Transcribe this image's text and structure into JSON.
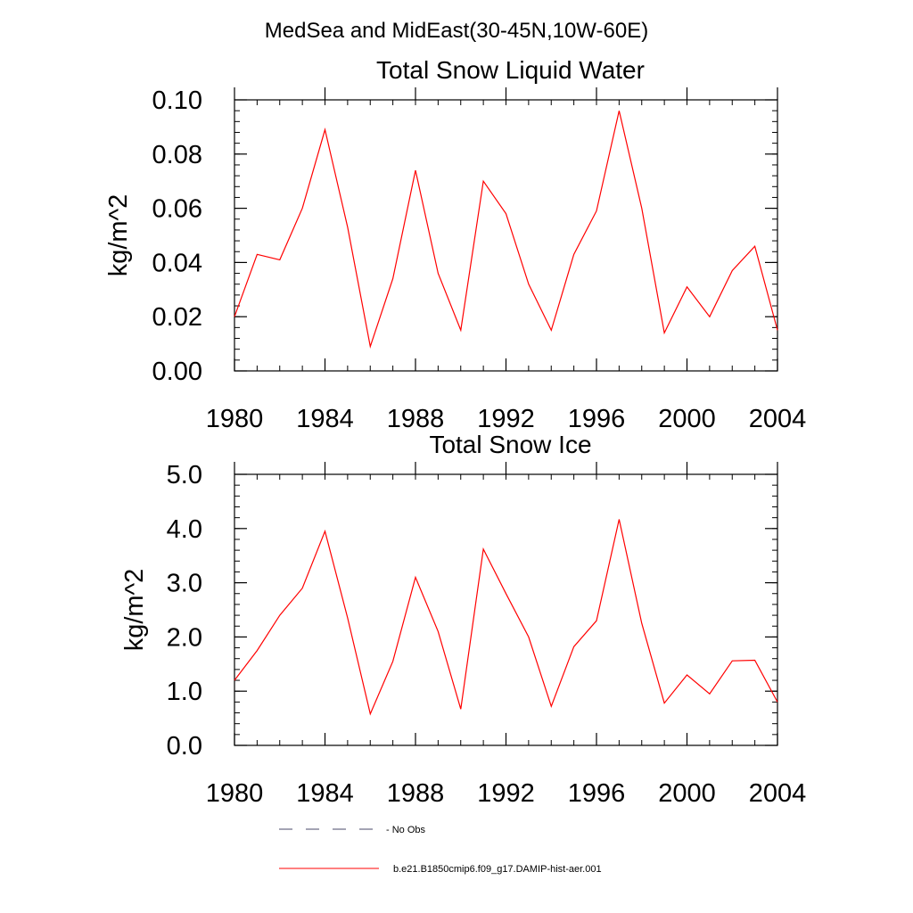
{
  "figure": {
    "suptitle": "MedSea and MidEast(30-45N,10W-60E)"
  },
  "chart_data": [
    {
      "type": "line",
      "title": "Total Snow Liquid Water",
      "xlabel": "",
      "ylabel": "kg/m^2",
      "xlim": [
        1980,
        2004
      ],
      "ylim": [
        0,
        0.1
      ],
      "xticks": [
        1980,
        1984,
        1988,
        1992,
        1996,
        2000,
        2004
      ],
      "xtick_labels": [
        "1980",
        "1984",
        "1988",
        "1992",
        "1996",
        "2000",
        "2004"
      ],
      "yticks": [
        0,
        0.02,
        0.04,
        0.06,
        0.08,
        0.1
      ],
      "ytick_labels": [
        "0.00",
        "0.02",
        "0.04",
        "0.06",
        "0.08",
        "0.10"
      ],
      "grid": false,
      "x": [
        1980,
        1981,
        1982,
        1983,
        1984,
        1985,
        1986,
        1987,
        1988,
        1989,
        1990,
        1991,
        1992,
        1993,
        1994,
        1995,
        1996,
        1997,
        1998,
        1999,
        2000,
        2001,
        2002,
        2003,
        2004
      ],
      "series": [
        {
          "name": "b.e21.B1850cmip6.f09_g17.DAMIP-hist-aer.001",
          "color": "#ff0000",
          "values": [
            0.02,
            0.043,
            0.041,
            0.06,
            0.089,
            0.053,
            0.009,
            0.034,
            0.074,
            0.036,
            0.015,
            0.07,
            0.058,
            0.032,
            0.015,
            0.043,
            0.059,
            0.096,
            0.06,
            0.014,
            0.031,
            0.02,
            0.037,
            0.046,
            0.015
          ]
        }
      ]
    },
    {
      "type": "line",
      "title": "Total Snow Ice",
      "xlabel": "",
      "ylabel": "kg/m^2",
      "xlim": [
        1980,
        2004
      ],
      "ylim": [
        0,
        5
      ],
      "xticks": [
        1980,
        1984,
        1988,
        1992,
        1996,
        2000,
        2004
      ],
      "xtick_labels": [
        "1980",
        "1984",
        "1988",
        "1992",
        "1996",
        "2000",
        "2004"
      ],
      "yticks": [
        0,
        1,
        2,
        3,
        4,
        5
      ],
      "ytick_labels": [
        "0.0",
        "1.0",
        "2.0",
        "3.0",
        "4.0",
        "5.0"
      ],
      "grid": false,
      "x": [
        1980,
        1981,
        1982,
        1983,
        1984,
        1985,
        1986,
        1987,
        1988,
        1989,
        1990,
        1991,
        1992,
        1993,
        1994,
        1995,
        1996,
        1997,
        1998,
        1999,
        2000,
        2001,
        2002,
        2003,
        2004
      ],
      "series": [
        {
          "name": "b.e21.B1850cmip6.f09_g17.DAMIP-hist-aer.001",
          "color": "#ff0000",
          "values": [
            1.2,
            1.75,
            2.4,
            2.9,
            3.95,
            2.35,
            0.58,
            1.55,
            3.1,
            2.1,
            0.67,
            3.62,
            2.8,
            2.0,
            0.72,
            1.82,
            2.3,
            4.17,
            2.25,
            0.78,
            1.3,
            0.95,
            1.56,
            1.57,
            0.8
          ]
        }
      ]
    }
  ],
  "legend": {
    "placement": "bottom",
    "entries": [
      {
        "label": "No Obs",
        "color": "#4a4a6a",
        "style": "dashed"
      },
      {
        "label": "b.e21.B1850cmip6.f09_g17.DAMIP-hist-aer.001",
        "color": "#ff0000",
        "style": "solid"
      }
    ]
  }
}
